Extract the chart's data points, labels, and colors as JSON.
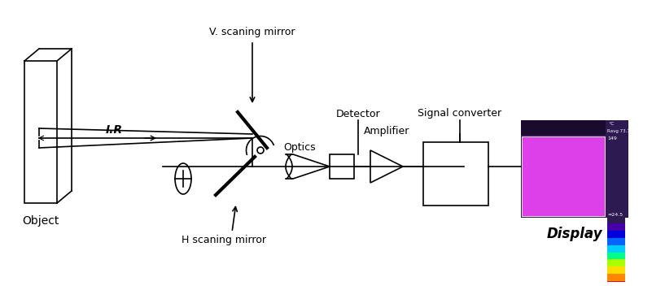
{
  "bg_color": "#ffffff",
  "line_color": "#000000",
  "labels": {
    "object": "Object",
    "ir": "I.R",
    "v_mirror": "V. scaning mirror",
    "optics": "Optics",
    "detector": "Detector",
    "amplifier": "Amplifier",
    "signal_converter": "Signal converter",
    "h_mirror": "H scaning mirror",
    "display": "Display"
  },
  "display_colors": {
    "bg": "#2d1a50",
    "top_strip": "#1a0a2e",
    "main": "#dd40e8",
    "cb_colors": [
      "#2d1a50",
      "#4400aa",
      "#0000dd",
      "#0066ff",
      "#00ccff",
      "#00ff88",
      "#aaff00",
      "#ffdd00",
      "#ff8800",
      "#ff0000",
      "#ff44aa"
    ],
    "temp_top": "149",
    "temp_avg": "Ravg 73.7",
    "temp_bot": "≈24.5"
  }
}
